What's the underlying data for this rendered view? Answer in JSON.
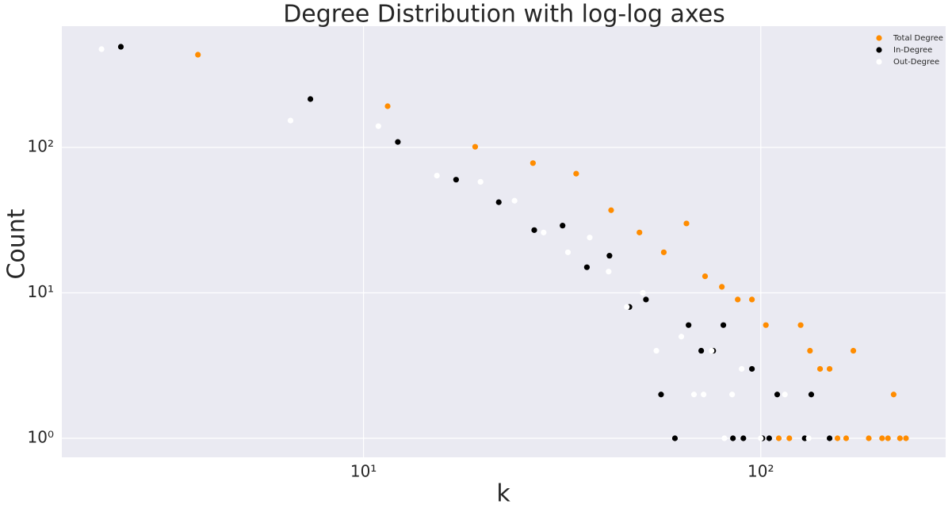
{
  "chart_data": {
    "type": "scatter",
    "title": "Degree Distribution with log-log axes",
    "x_label": "k",
    "y_label": "Count",
    "xscale": "log",
    "yscale": "log",
    "xlim": [
      1.74,
      292
    ],
    "ylim": [
      0.74,
      682
    ],
    "xticks": [
      {
        "value": 10,
        "label": "10¹"
      },
      {
        "value": 100,
        "label": "10²"
      }
    ],
    "yticks": [
      {
        "value": 1,
        "label": "10⁰"
      },
      {
        "value": 10,
        "label": "10¹"
      },
      {
        "value": 100,
        "label": "10²"
      }
    ],
    "grid": true,
    "legend": "upper right",
    "series": [
      {
        "name": "Total Degree",
        "color": "#ff8c00",
        "x": [
          3.83,
          11.5,
          19.1,
          26.7,
          34.3,
          42,
          49.5,
          57,
          65,
          72.4,
          79.8,
          87.5,
          95,
          103,
          111,
          118,
          126,
          133,
          141,
          149,
          156,
          164,
          171,
          187,
          202,
          209,
          216,
          224,
          232
        ],
        "values": [
          434,
          192,
          101,
          78,
          66,
          37,
          26,
          19,
          30,
          13,
          11,
          9,
          9,
          6,
          1,
          1,
          6,
          4,
          3,
          3,
          1,
          1,
          4,
          1,
          1,
          1,
          2,
          1,
          1
        ]
      },
      {
        "name": "In-Degree",
        "color": "#000000",
        "x": [
          2.45,
          7.35,
          12.2,
          17.1,
          21.9,
          26.9,
          31.7,
          36.5,
          41.6,
          46.7,
          51.4,
          56.1,
          60.8,
          65.8,
          70.8,
          75.9,
          80.5,
          85.1,
          90.4,
          95,
          101,
          105,
          110,
          129,
          134,
          149
        ],
        "values": [
          492,
          215,
          109,
          60,
          42,
          27,
          29,
          15,
          18,
          8,
          9,
          2,
          1,
          6,
          4,
          4,
          6,
          1,
          1,
          3,
          1,
          1,
          2,
          1,
          2,
          1
        ]
      },
      {
        "name": "Out-Degree",
        "color": "#ffffff",
        "x": [
          2.19,
          6.55,
          10.9,
          15.3,
          19.7,
          24.0,
          28.4,
          32.7,
          37.1,
          41.4,
          46.0,
          50.5,
          54.6,
          63.1,
          67.9,
          71.8,
          75.2,
          81,
          84.7,
          89.5,
          100,
          115,
          132
        ],
        "values": [
          474,
          153,
          140,
          64,
          58,
          43,
          26,
          19,
          24,
          14,
          8,
          10,
          4,
          5,
          2,
          2,
          4,
          1,
          2,
          3,
          1,
          2,
          1
        ]
      }
    ]
  }
}
